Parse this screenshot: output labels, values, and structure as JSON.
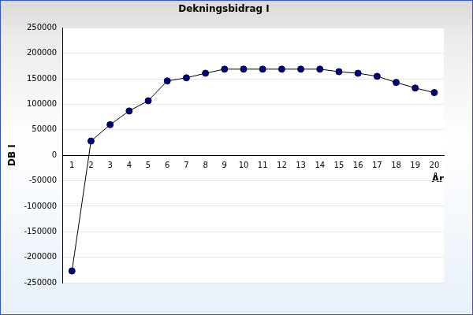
{
  "chart_data": {
    "type": "line",
    "title": "Dekningsbidrag I",
    "x_label": "År",
    "y_label": "DB I",
    "categories": [
      1,
      2,
      3,
      4,
      5,
      6,
      7,
      8,
      9,
      10,
      11,
      12,
      13,
      14,
      15,
      16,
      17,
      18,
      19,
      20
    ],
    "values": [
      -227000,
      28000,
      60000,
      87000,
      107000,
      146000,
      152000,
      161000,
      169000,
      169000,
      169000,
      169000,
      169000,
      169000,
      164000,
      161000,
      155000,
      143000,
      132000,
      123000
    ],
    "color": "#000080",
    "marker": "circle",
    "ylim": [
      -250000,
      250000
    ],
    "yticks": [
      -250000,
      -200000,
      -150000,
      -100000,
      -50000,
      0,
      50000,
      100000,
      150000,
      200000,
      250000
    ],
    "grid": true
  }
}
